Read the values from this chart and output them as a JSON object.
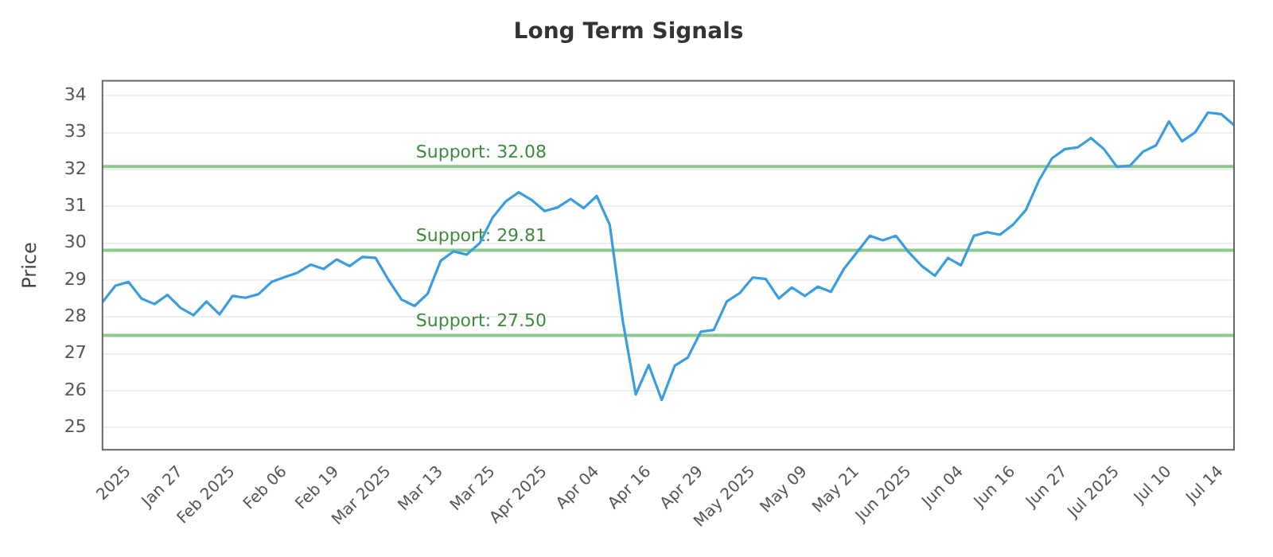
{
  "chart_data": {
    "type": "line",
    "title": "Long Term Signals",
    "ylabel": "Price",
    "categories": [
      null,
      null,
      "2025",
      null,
      null,
      null,
      "Jan 27",
      null,
      null,
      null,
      "Feb 2025",
      null,
      null,
      null,
      "Feb 06",
      null,
      null,
      null,
      "Feb 19",
      null,
      null,
      null,
      "Mar 2025",
      null,
      null,
      null,
      "Mar 13",
      null,
      null,
      null,
      "Mar 25",
      null,
      null,
      null,
      "Apr 2025",
      null,
      null,
      null,
      "Apr 04",
      null,
      null,
      null,
      "Apr 16",
      null,
      null,
      null,
      "Apr 29",
      null,
      null,
      null,
      "May 2025",
      null,
      null,
      null,
      "May 09",
      null,
      null,
      null,
      "May 21",
      null,
      null,
      null,
      "Jun 2025",
      null,
      null,
      null,
      "Jun 04",
      null,
      null,
      null,
      "Jun 16",
      null,
      null,
      null,
      "Jun 27",
      null,
      null,
      null,
      "Jul 2025",
      null,
      null,
      null,
      "Jul 10",
      null,
      null,
      null,
      "Jul 14",
      null
    ],
    "series": [
      {
        "color": "#3a9de0",
        "values": [
          28.4,
          28.85,
          28.95,
          28.5,
          28.35,
          28.6,
          28.25,
          28.05,
          28.42,
          28.07,
          28.57,
          28.52,
          28.62,
          28.95,
          29.08,
          29.2,
          29.42,
          29.3,
          29.56,
          29.38,
          29.63,
          29.6,
          29.0,
          28.47,
          28.3,
          28.63,
          29.52,
          29.78,
          29.69,
          30.0,
          30.7,
          31.13,
          31.38,
          31.17,
          30.87,
          30.97,
          31.2,
          30.95,
          31.28,
          30.5,
          27.9,
          25.9,
          26.7,
          25.75,
          26.68,
          26.9,
          27.6,
          27.65,
          28.42,
          28.65,
          29.07,
          29.03,
          28.5,
          28.8,
          28.57,
          28.82,
          28.68,
          29.3,
          29.75,
          30.2,
          30.08,
          30.2,
          29.75,
          29.38,
          29.12,
          29.6,
          29.4,
          30.2,
          30.3,
          30.23,
          30.5,
          30.9,
          31.7,
          32.3,
          32.55,
          32.6,
          32.85,
          32.55,
          32.07,
          32.1,
          32.48,
          32.65,
          33.3,
          32.76,
          33.0,
          33.54,
          33.5,
          33.2
        ]
      }
    ],
    "ylim": [
      24.4,
      34.4
    ],
    "yticks": [
      25,
      26,
      27,
      28,
      29,
      30,
      31,
      32,
      33,
      34
    ],
    "grid": "y",
    "legend": false,
    "marker": "none",
    "line_style": "solid",
    "ref_lines": [
      {
        "axis": "y",
        "value": 32.08,
        "label": "Support: 32.08",
        "color": "#8cc98c"
      },
      {
        "axis": "y",
        "value": 29.81,
        "label": "Support: 29.81",
        "color": "#8cc98c"
      },
      {
        "axis": "y",
        "value": 27.5,
        "label": "Support: 27.50",
        "color": "#8cc98c"
      }
    ]
  }
}
